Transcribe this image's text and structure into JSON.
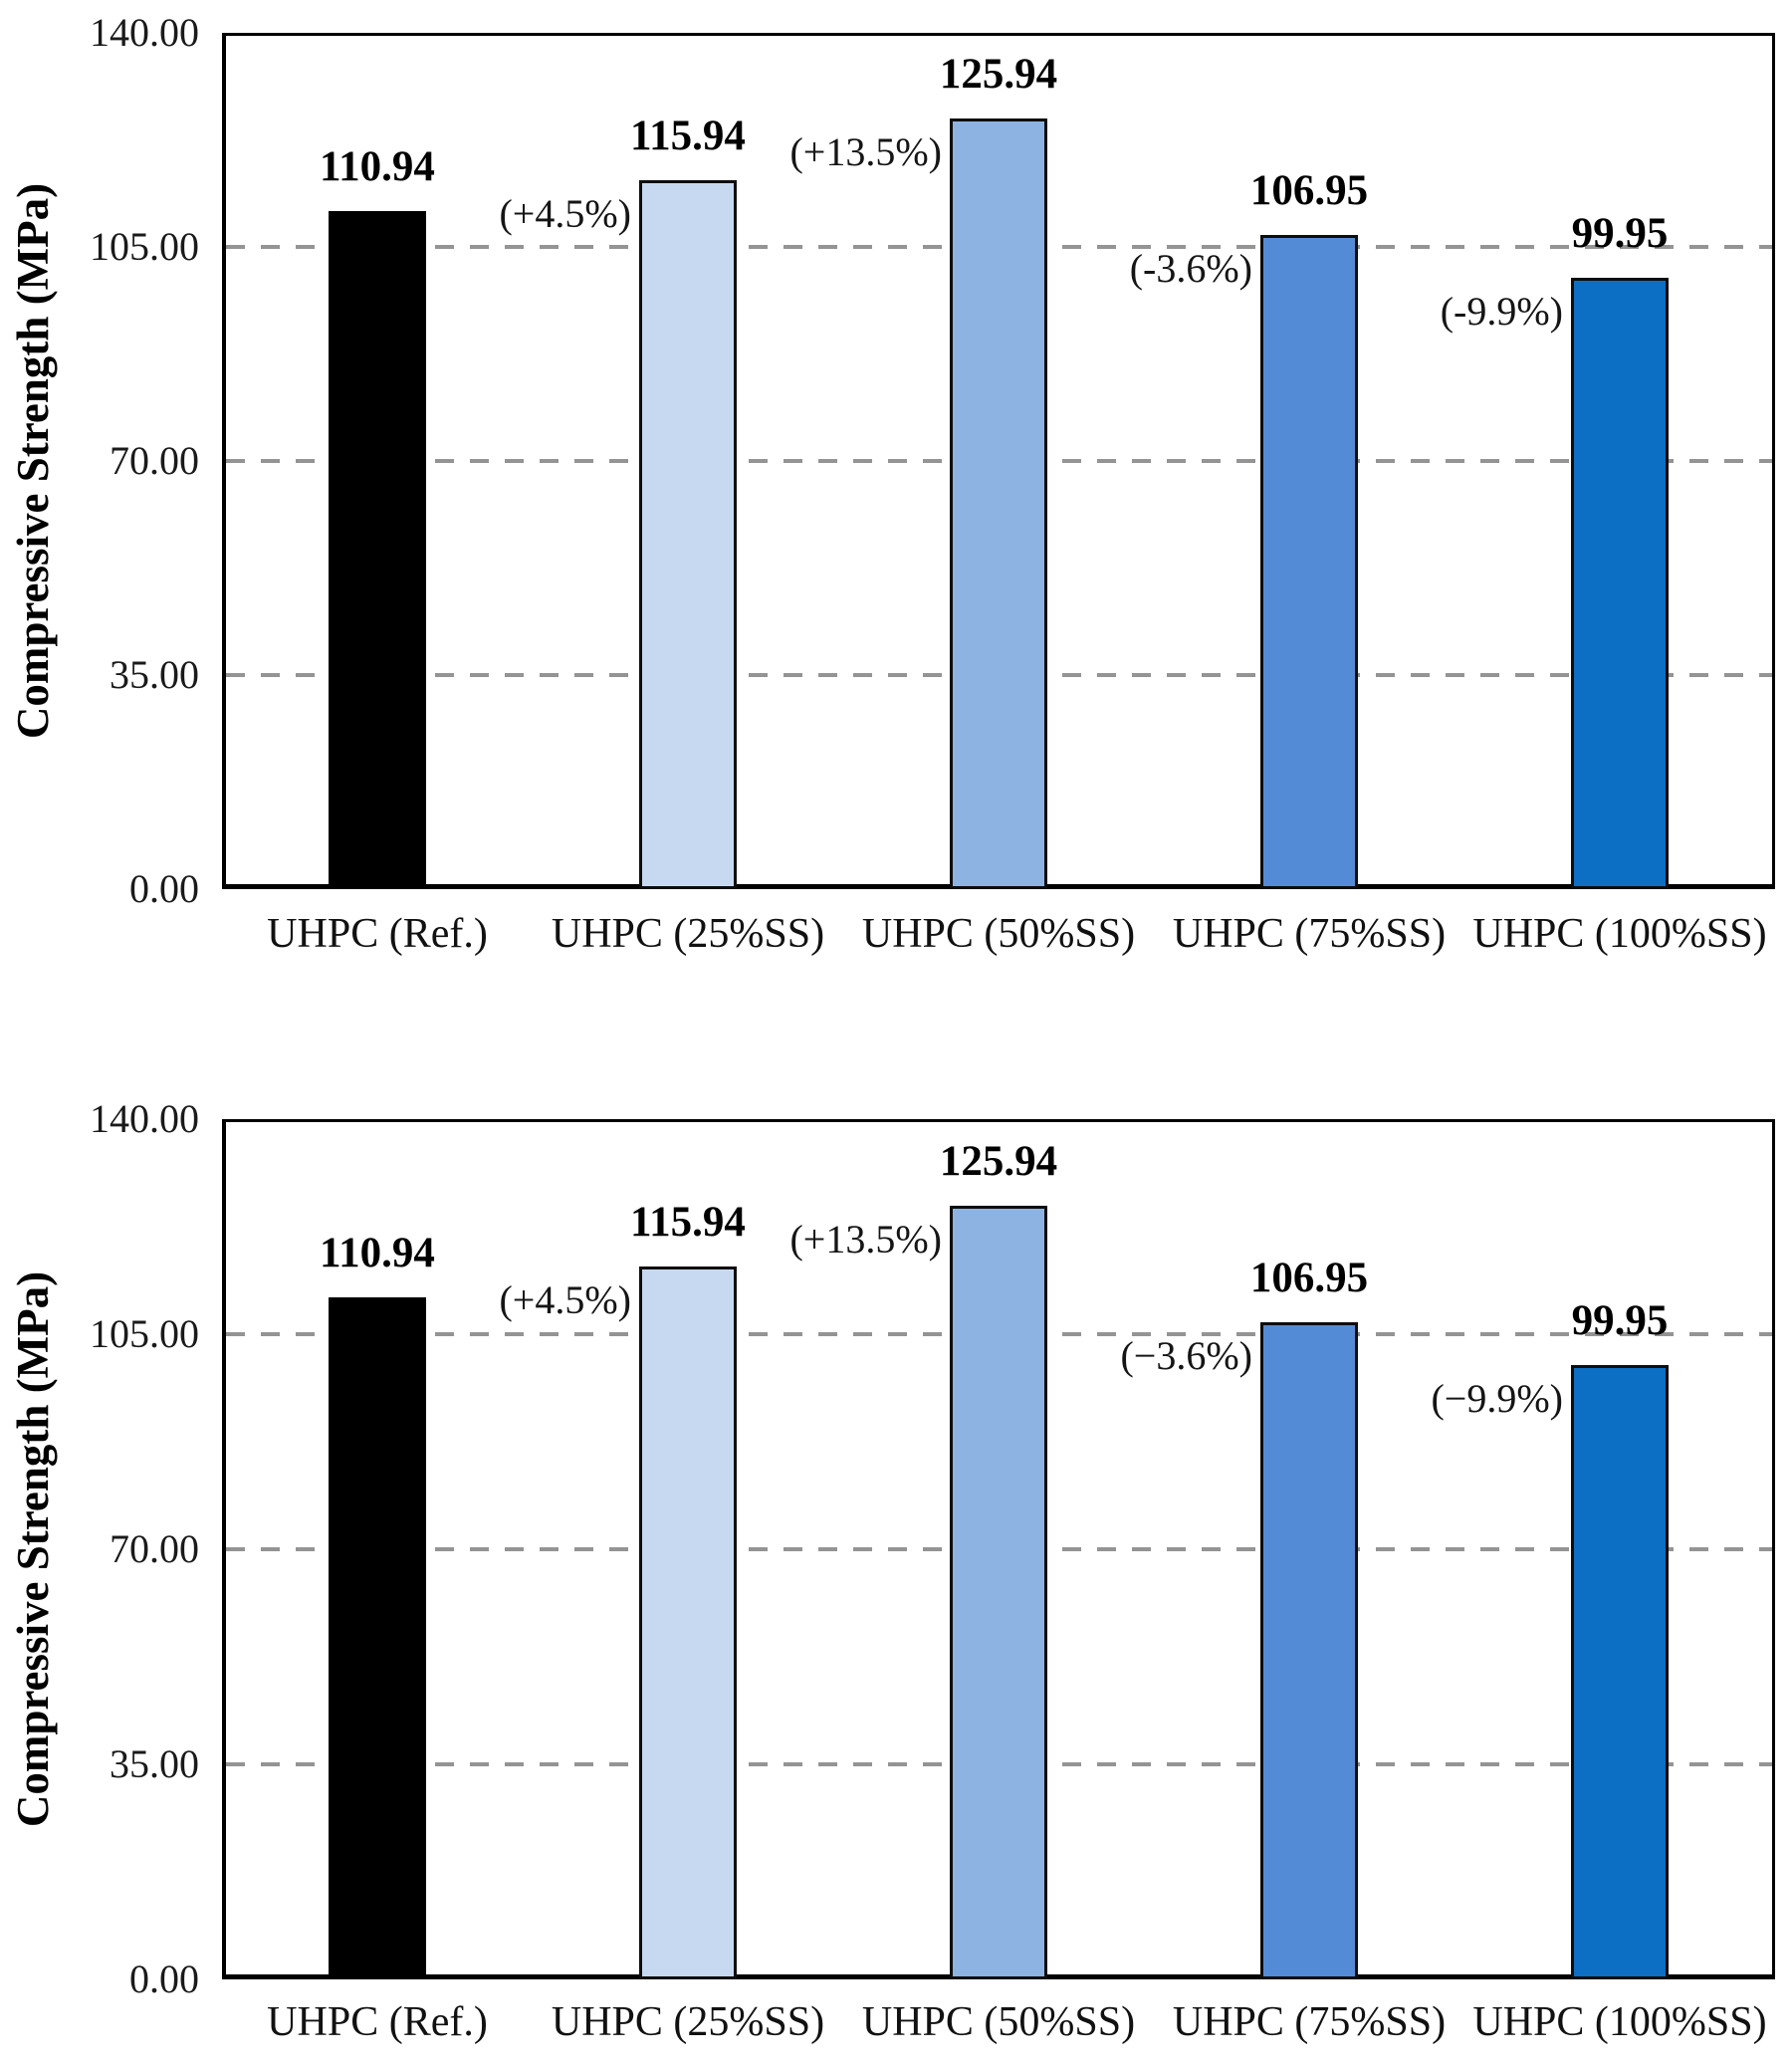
{
  "figure": {
    "background_color": "#ffffff",
    "grid_color": "#949494",
    "bar_border_color": "#0d0d0d"
  },
  "chart_data": [
    {
      "type": "bar",
      "title": "",
      "xlabel": "",
      "ylabel": "Compressive Strength (MPa)",
      "ylim": [
        0,
        140
      ],
      "ytick_step": 35,
      "yticks": [
        "0.00",
        "35.00",
        "70.00",
        "105.00",
        "140.00"
      ],
      "gridlines_at": [
        35,
        70,
        105
      ],
      "grid": "dashed-horizontal",
      "legend_position": "none",
      "categories": [
        "UHPC (Ref.)",
        "UHPC (25%SS)",
        "UHPC (50%SS)",
        "UHPC (75%SS)",
        "UHPC (100%SS)"
      ],
      "values": [
        110.94,
        115.94,
        125.94,
        106.95,
        99.95
      ],
      "value_labels": [
        "110.94",
        "115.94",
        "125.94",
        "106.95",
        "99.95"
      ],
      "pct_labels": [
        "",
        "(+4.5%)",
        "(+13.5%)",
        "(-3.6%)",
        "(-9.9%)"
      ],
      "bar_colors": [
        "#000000",
        "#c6d9f1",
        "#8db3e2",
        "#548bd6",
        "#0d6fc4"
      ]
    },
    {
      "type": "bar",
      "title": "",
      "xlabel": "",
      "ylabel": "Compressive Strength (MPa)",
      "ylim": [
        0,
        140
      ],
      "ytick_step": 35,
      "yticks": [
        "0.00",
        "35.00",
        "70.00",
        "105.00",
        "140.00"
      ],
      "gridlines_at": [
        35,
        70,
        105
      ],
      "grid": "dashed-horizontal",
      "legend_position": "none",
      "categories": [
        "UHPC (Ref.)",
        "UHPC (25%SS)",
        "UHPC (50%SS)",
        "UHPC (75%SS)",
        "UHPC (100%SS)"
      ],
      "values": [
        110.94,
        115.94,
        125.94,
        106.95,
        99.95
      ],
      "value_labels": [
        "110.94",
        "115.94",
        "125.94",
        "106.95",
        "99.95"
      ],
      "pct_labels": [
        "",
        "(+4.5%)",
        "(+13.5%)",
        "(−3.6%)",
        "(−9.9%)"
      ],
      "bar_colors": [
        "#000000",
        "#c6d9f1",
        "#8db3e2",
        "#548bd6",
        "#0d6fc4"
      ]
    }
  ]
}
